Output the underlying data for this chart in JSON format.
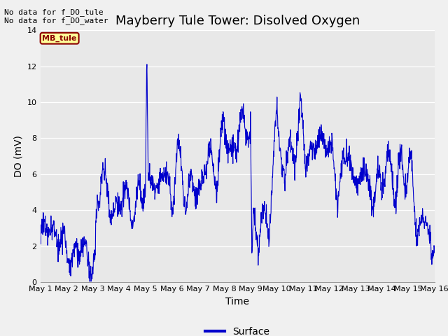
{
  "title": "Mayberry Tule Tower: Disolved Oxygen",
  "xlabel": "Time",
  "ylabel": "DO (mV)",
  "ylim": [
    0,
    14
  ],
  "xlim_days": [
    0,
    15
  ],
  "yticks": [
    0,
    2,
    4,
    6,
    8,
    10,
    12,
    14
  ],
  "xtick_labels": [
    "May 1",
    "May 2",
    "May 3",
    "May 4",
    "May 5",
    "May 6",
    "May 7",
    "May 8",
    "May 9",
    "May 10",
    "May 11",
    "May 12",
    "May 13",
    "May 14",
    "May 15",
    "May 16"
  ],
  "annotation_top": "No data for f_DO_tule\nNo data for f_DO_water",
  "legend_label": "Surface",
  "legend_line_color": "#0000cc",
  "line_color": "#0000cc",
  "fig_bg_color": "#f0f0f0",
  "plot_bg_color": "#e8e8e8",
  "mb_tule_box_color": "#8b0000",
  "mb_tule_box_bg": "#ffff99",
  "title_fontsize": 13,
  "axis_label_fontsize": 10,
  "tick_fontsize": 8,
  "annotation_fontsize": 8,
  "legend_fontsize": 10
}
